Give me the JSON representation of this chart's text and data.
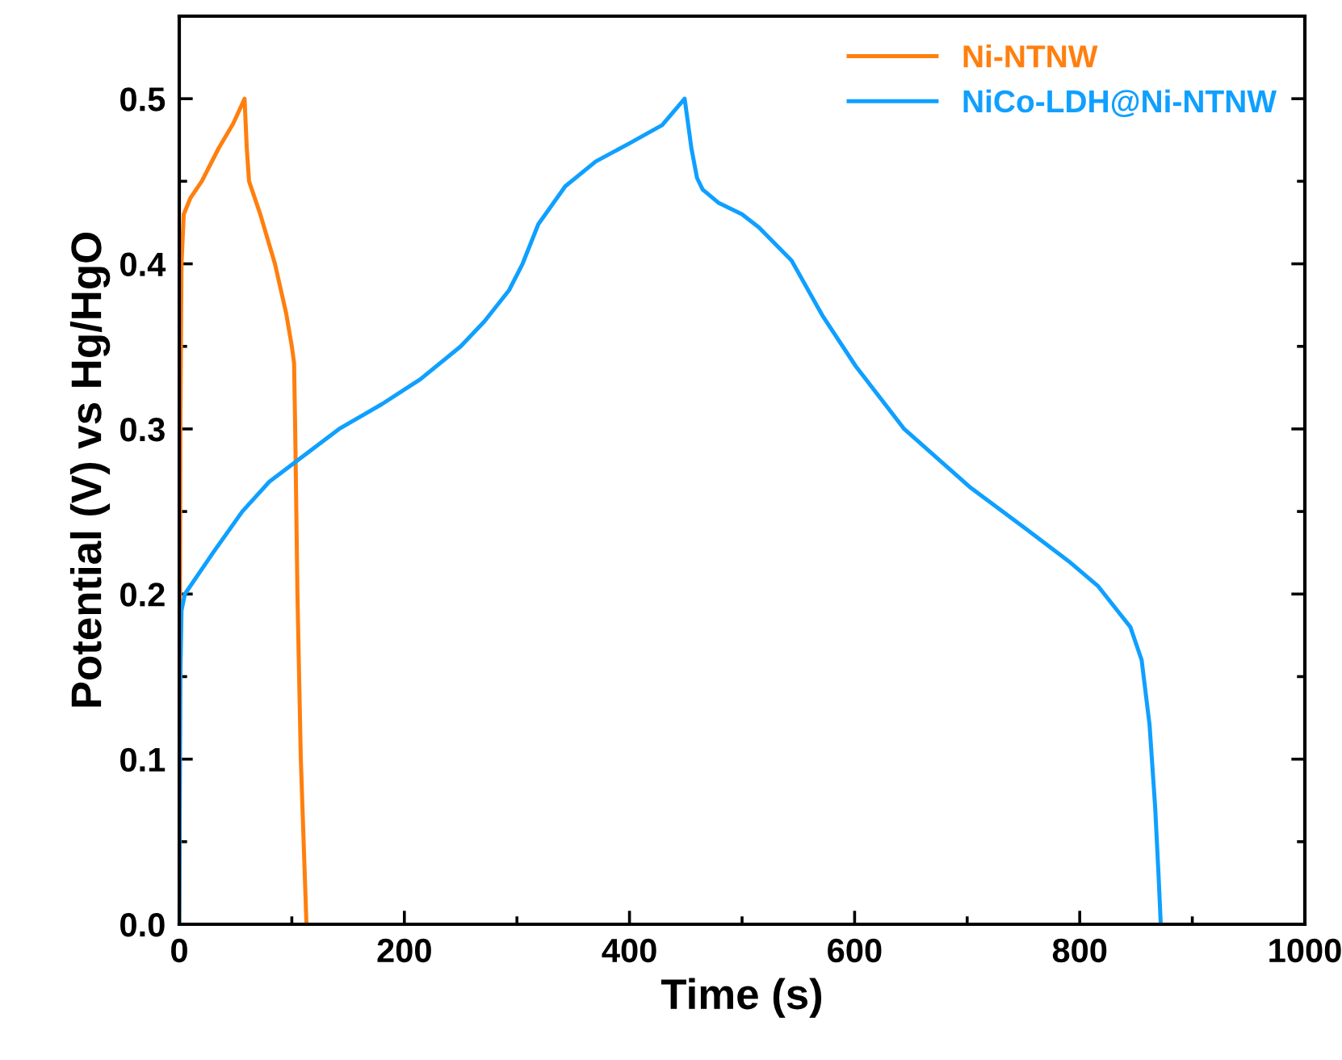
{
  "chart_data": {
    "type": "line",
    "xlabel": "Time (s)",
    "ylabel": "Potential (V) vs Hg/HgO",
    "xlim": [
      0,
      1000
    ],
    "ylim": [
      0,
      0.55
    ],
    "xticks": [
      0,
      200,
      400,
      600,
      800,
      1000
    ],
    "yticks": [
      {
        "value": 0,
        "label": "0.0"
      },
      0.1,
      0.2,
      0.3,
      0.4,
      0.5
    ],
    "grid": false,
    "legend": "top right",
    "marker": "none",
    "line_style": "solid",
    "series": [
      {
        "name": "Ni-NTNW",
        "color": "#ff7f0e",
        "x": [
          0,
          1,
          2,
          4,
          10,
          20,
          35,
          48,
          58,
          60,
          62,
          72,
          85,
          95,
          100,
          102,
          103,
          105,
          108,
          111,
          113
        ],
        "values": [
          0,
          0.3,
          0.4,
          0.43,
          0.44,
          0.45,
          0.47,
          0.485,
          0.5,
          0.47,
          0.45,
          0.43,
          0.4,
          0.37,
          0.35,
          0.34,
          0.3,
          0.2,
          0.1,
          0.04,
          0
        ]
      },
      {
        "name": "NiCo-LDH@Ni-NTNW",
        "color": "#0fa0ff",
        "x": [
          0,
          1,
          2,
          5,
          30,
          56,
          80,
          113,
          142,
          180,
          214,
          250,
          271,
          293,
          305,
          319,
          343,
          370,
          400,
          429,
          449,
          455,
          460,
          465,
          479,
          500,
          515,
          544,
          572,
          601,
          644,
          702,
          759,
          790,
          816,
          845,
          855,
          862,
          867,
          870,
          872
        ],
        "values": [
          0,
          0.15,
          0.19,
          0.2,
          0.225,
          0.25,
          0.268,
          0.285,
          0.3,
          0.315,
          0.33,
          0.35,
          0.365,
          0.384,
          0.4,
          0.424,
          0.447,
          0.462,
          0.473,
          0.484,
          0.5,
          0.47,
          0.452,
          0.445,
          0.437,
          0.43,
          0.422,
          0.402,
          0.368,
          0.338,
          0.3,
          0.265,
          0.236,
          0.22,
          0.205,
          0.18,
          0.16,
          0.121,
          0.071,
          0.03,
          0
        ]
      }
    ]
  }
}
